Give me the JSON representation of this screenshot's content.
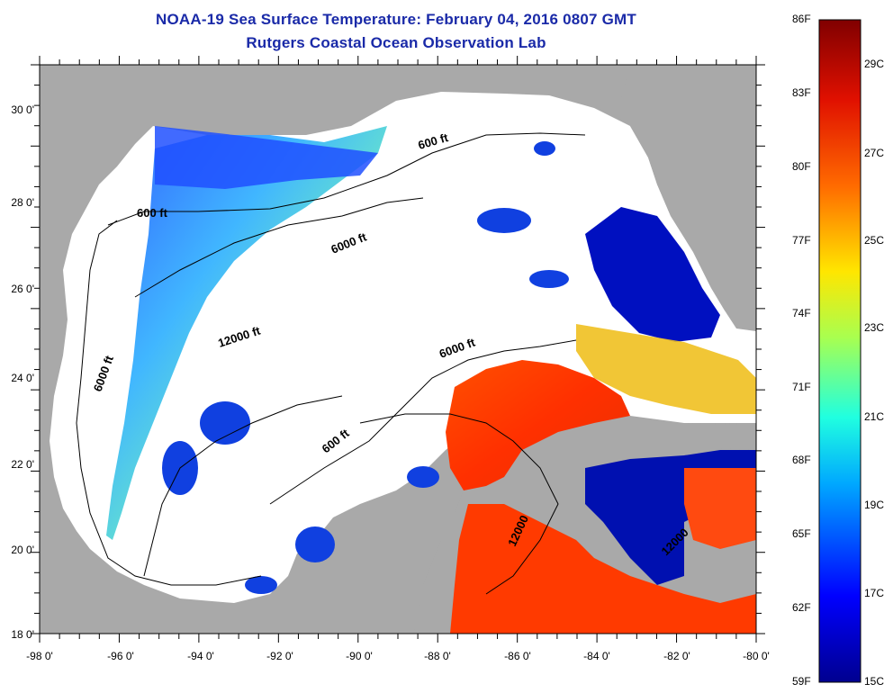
{
  "title": {
    "line1": "NOAA-19 Sea Surface Temperature:  February 04, 2016 0807 GMT",
    "line2": "Rutgers Coastal Ocean Observation Lab"
  },
  "axes": {
    "latitude_labels": [
      "30 0'",
      "28 0'",
      "26 0'",
      "24 0'",
      "22 0'",
      "20 0'",
      "18 0'"
    ],
    "longitude_labels": [
      "-98 0'",
      "-96 0'",
      "-94 0'",
      "-92 0'",
      "-90 0'",
      "-88 0'",
      "-86 0'",
      "-84 0'",
      "-82 0'",
      "-80 0'"
    ]
  },
  "contour_labels": [
    "600 ft",
    "600 ft",
    "6000 ft",
    "6000 ft",
    "12000 ft",
    "6000 ft",
    "600 ft",
    "12000",
    "12000"
  ],
  "colorbar": {
    "fahrenheit_labels": [
      "86F",
      "83F",
      "80F",
      "77F",
      "74F",
      "71F",
      "68F",
      "65F",
      "62F",
      "59F"
    ],
    "celsius_labels": [
      "29C",
      "27C",
      "25C",
      "23C",
      "21C",
      "19C",
      "17C",
      "15C"
    ],
    "colors": [
      "#800000",
      "#d40000",
      "#ff4000",
      "#ff9a00",
      "#ffe600",
      "#a0ff50",
      "#20ffd0",
      "#00a0ff",
      "#0030ff",
      "#00008f"
    ]
  },
  "colors": {
    "land": "#a9a9a9",
    "cloud": "#ffffff",
    "title": "#1a2aa8"
  }
}
